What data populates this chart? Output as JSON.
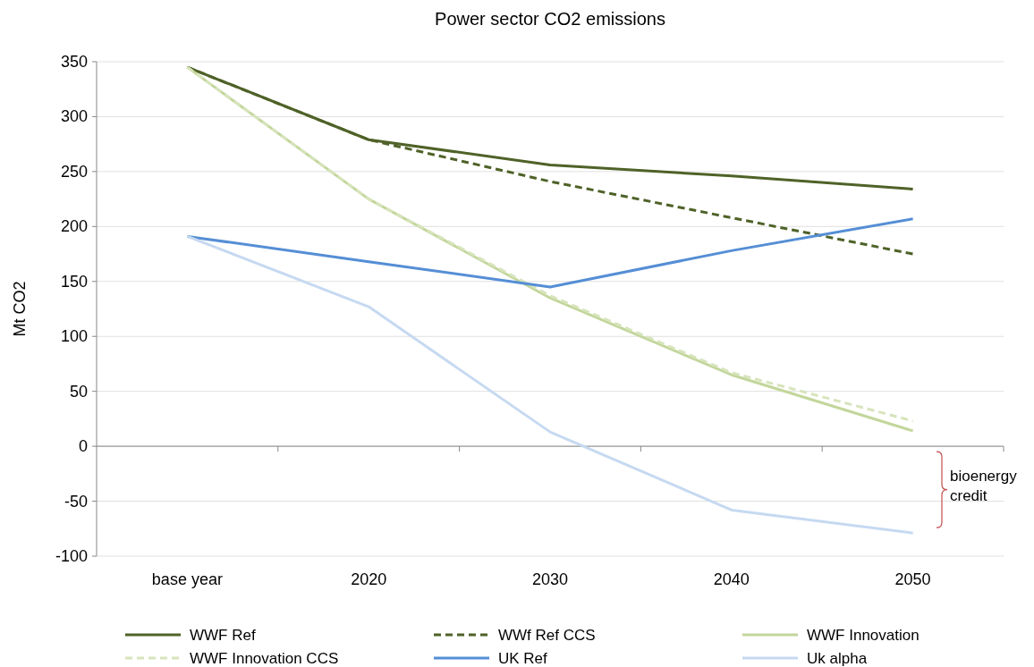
{
  "chart_data": {
    "type": "line",
    "title": "Power sector CO2 emissions",
    "ylabel": "Mt CO2",
    "categories": [
      "base year",
      "2020",
      "2030",
      "2040",
      "2050"
    ],
    "ylim": [
      -100,
      350
    ],
    "yticks": [
      -100,
      -50,
      0,
      50,
      100,
      150,
      200,
      250,
      300,
      350
    ],
    "grid": "y",
    "legend": "bottom",
    "annotations": [
      "bioenergy credit"
    ],
    "series": [
      {
        "name": "WWF Ref",
        "color": "#4f6228",
        "line_style": "solid",
        "values": [
          345,
          279,
          256,
          246,
          234
        ]
      },
      {
        "name": "WWf Ref CCS",
        "color": "#4f6228",
        "line_style": "dashed",
        "values": [
          345,
          279,
          241,
          208,
          175
        ]
      },
      {
        "name": "WWF Innovation",
        "color": "#c3d69b",
        "line_style": "solid",
        "values": [
          345,
          225,
          135,
          65,
          14
        ]
      },
      {
        "name": "WWF Innovation CCS",
        "color": "#d7e4bc",
        "line_style": "dashed",
        "values": [
          345,
          225,
          137,
          67,
          23
        ]
      },
      {
        "name": "UK Ref",
        "color": "#558ed5",
        "line_style": "solid",
        "values": [
          191,
          168,
          145,
          178,
          207
        ]
      },
      {
        "name": "Uk alpha",
        "color": "#c6d9f1",
        "line_style": "solid",
        "values": [
          191,
          127,
          13,
          -58,
          -79
        ]
      }
    ]
  }
}
